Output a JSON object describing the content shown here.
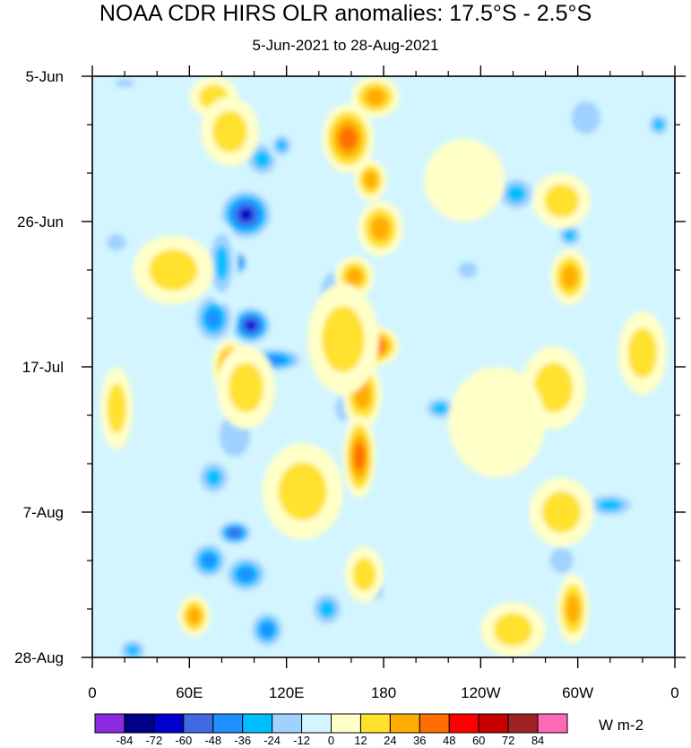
{
  "chart_data": {
    "type": "heatmap",
    "title": "NOAA CDR HIRS OLR anomalies: 17.5°S - 2.5°S",
    "subtitle": "5-Jun-2021 to 28-Aug-2021",
    "units": "W m-2",
    "x_tick_labels": [
      "0",
      "60E",
      "120E",
      "180",
      "120W",
      "60W",
      "0"
    ],
    "x_tick_values_deg_east": [
      0,
      60,
      120,
      180,
      240,
      300,
      360
    ],
    "y_tick_labels": [
      "5-Jun",
      "26-Jun",
      "17-Jul",
      "7-Aug",
      "28-Aug"
    ],
    "y_tick_days_from_start": [
      0,
      21,
      42,
      63,
      84
    ],
    "xlim": [
      0,
      360
    ],
    "ylim_days": [
      0,
      84
    ],
    "colorbar": {
      "levels": [
        -84,
        -72,
        -60,
        -48,
        -36,
        -24,
        -12,
        0,
        12,
        24,
        36,
        48,
        60,
        72,
        84
      ],
      "level_labels": [
        "-84",
        "-72",
        "-60",
        "-48",
        "-36",
        "-24",
        "-12",
        "0",
        "12",
        "24",
        "36",
        "48",
        "60",
        "72",
        "84"
      ],
      "colors": [
        "#8a2be2",
        "#00008b",
        "#0000cd",
        "#4169e1",
        "#1e90ff",
        "#00bfff",
        "#a0d2ff",
        "#d2f5ff",
        "#ffffc8",
        "#ffe12d",
        "#ffad00",
        "#ff6e00",
        "#ff0000",
        "#c80000",
        "#a02323",
        "#ff69b4"
      ]
    },
    "features": [
      {
        "lon": 95,
        "day": 20,
        "value": -66,
        "rx": 18,
        "ry": 4
      },
      {
        "lon": 88,
        "day": 27,
        "value": -68,
        "rx": 9,
        "ry": 2
      },
      {
        "lon": 98,
        "day": 36,
        "value": -72,
        "rx": 14,
        "ry": 3
      },
      {
        "lon": 75,
        "day": 35,
        "value": -48,
        "rx": 14,
        "ry": 4
      },
      {
        "lon": 113,
        "day": 41,
        "value": -48,
        "rx": 20,
        "ry": 2
      },
      {
        "lon": 105,
        "day": 12,
        "value": -40,
        "rx": 12,
        "ry": 3
      },
      {
        "lon": 117,
        "day": 10,
        "value": -36,
        "rx": 8,
        "ry": 2
      },
      {
        "lon": 80,
        "day": 27,
        "value": -40,
        "rx": 10,
        "ry": 6
      },
      {
        "lon": 88,
        "day": 66,
        "value": -62,
        "rx": 12,
        "ry": 2
      },
      {
        "lon": 72,
        "day": 70,
        "value": -48,
        "rx": 13,
        "ry": 3
      },
      {
        "lon": 95,
        "day": 72,
        "value": -48,
        "rx": 15,
        "ry": 3
      },
      {
        "lon": 108,
        "day": 80,
        "value": -48,
        "rx": 12,
        "ry": 3
      },
      {
        "lon": 75,
        "day": 58,
        "value": -36,
        "rx": 12,
        "ry": 3
      },
      {
        "lon": 88,
        "day": 52,
        "value": -24,
        "rx": 16,
        "ry": 5
      },
      {
        "lon": 175,
        "day": 74,
        "value": -60,
        "rx": 6,
        "ry": 2
      },
      {
        "lon": 145,
        "day": 77,
        "value": -36,
        "rx": 12,
        "ry": 3
      },
      {
        "lon": 155,
        "day": 48,
        "value": -24,
        "rx": 8,
        "ry": 3
      },
      {
        "lon": 215,
        "day": 48,
        "value": -36,
        "rx": 12,
        "ry": 2
      },
      {
        "lon": 232,
        "day": 28,
        "value": -24,
        "rx": 10,
        "ry": 2
      },
      {
        "lon": 262,
        "day": 17,
        "value": -36,
        "rx": 14,
        "ry": 3
      },
      {
        "lon": 295,
        "day": 23,
        "value": -40,
        "rx": 9,
        "ry": 2
      },
      {
        "lon": 320,
        "day": 62,
        "value": -36,
        "rx": 18,
        "ry": 2
      },
      {
        "lon": 290,
        "day": 70,
        "value": -24,
        "rx": 12,
        "ry": 3
      },
      {
        "lon": 305,
        "day": 6,
        "value": -24,
        "rx": 15,
        "ry": 4
      },
      {
        "lon": 350,
        "day": 7,
        "value": -36,
        "rx": 8,
        "ry": 2
      },
      {
        "lon": 25,
        "day": 83,
        "value": -36,
        "rx": 10,
        "ry": 2
      },
      {
        "lon": 15,
        "day": 24,
        "value": -24,
        "rx": 10,
        "ry": 2
      },
      {
        "lon": 20,
        "day": 1,
        "value": -24,
        "rx": 10,
        "ry": 1
      },
      {
        "lon": 148,
        "day": 32,
        "value": -24,
        "rx": 12,
        "ry": 6
      },
      {
        "lon": 175,
        "day": 3,
        "value": 36,
        "rx": 15,
        "ry": 3
      },
      {
        "lon": 158,
        "day": 9,
        "value": 48,
        "rx": 16,
        "ry": 5
      },
      {
        "lon": 172,
        "day": 15,
        "value": 36,
        "rx": 10,
        "ry": 3
      },
      {
        "lon": 178,
        "day": 22,
        "value": 36,
        "rx": 14,
        "ry": 4
      },
      {
        "lon": 162,
        "day": 29,
        "value": 36,
        "rx": 12,
        "ry": 3
      },
      {
        "lon": 172,
        "day": 39,
        "value": 60,
        "rx": 18,
        "ry": 3
      },
      {
        "lon": 167,
        "day": 46,
        "value": 36,
        "rx": 12,
        "ry": 5
      },
      {
        "lon": 165,
        "day": 55,
        "value": 48,
        "rx": 10,
        "ry": 6
      },
      {
        "lon": 155,
        "day": 38,
        "value": 24,
        "rx": 22,
        "ry": 8
      },
      {
        "lon": 168,
        "day": 72,
        "value": 24,
        "rx": 12,
        "ry": 4
      },
      {
        "lon": 85,
        "day": 42,
        "value": 48,
        "rx": 11,
        "ry": 4
      },
      {
        "lon": 95,
        "day": 45,
        "value": 24,
        "rx": 18,
        "ry": 6
      },
      {
        "lon": 63,
        "day": 78,
        "value": 36,
        "rx": 10,
        "ry": 3
      },
      {
        "lon": 75,
        "day": 3,
        "value": 24,
        "rx": 15,
        "ry": 3
      },
      {
        "lon": 85,
        "day": 8,
        "value": 18,
        "rx": 18,
        "ry": 5
      },
      {
        "lon": 50,
        "day": 28,
        "value": 18,
        "rx": 25,
        "ry": 5
      },
      {
        "lon": 15,
        "day": 48,
        "value": 18,
        "rx": 10,
        "ry": 6
      },
      {
        "lon": 130,
        "day": 60,
        "value": 18,
        "rx": 25,
        "ry": 7
      },
      {
        "lon": 295,
        "day": 29,
        "value": 36,
        "rx": 12,
        "ry": 4
      },
      {
        "lon": 290,
        "day": 18,
        "value": 24,
        "rx": 18,
        "ry": 4
      },
      {
        "lon": 290,
        "day": 63,
        "value": 24,
        "rx": 20,
        "ry": 5
      },
      {
        "lon": 297,
        "day": 77,
        "value": 36,
        "rx": 10,
        "ry": 5
      },
      {
        "lon": 285,
        "day": 45,
        "value": 18,
        "rx": 20,
        "ry": 6
      },
      {
        "lon": 340,
        "day": 40,
        "value": 18,
        "rx": 15,
        "ry": 6
      },
      {
        "lon": 260,
        "day": 80,
        "value": 18,
        "rx": 20,
        "ry": 4
      },
      {
        "lon": 250,
        "day": 50,
        "value": 12,
        "rx": 30,
        "ry": 8
      },
      {
        "lon": 230,
        "day": 15,
        "value": 12,
        "rx": 25,
        "ry": 6
      }
    ]
  }
}
